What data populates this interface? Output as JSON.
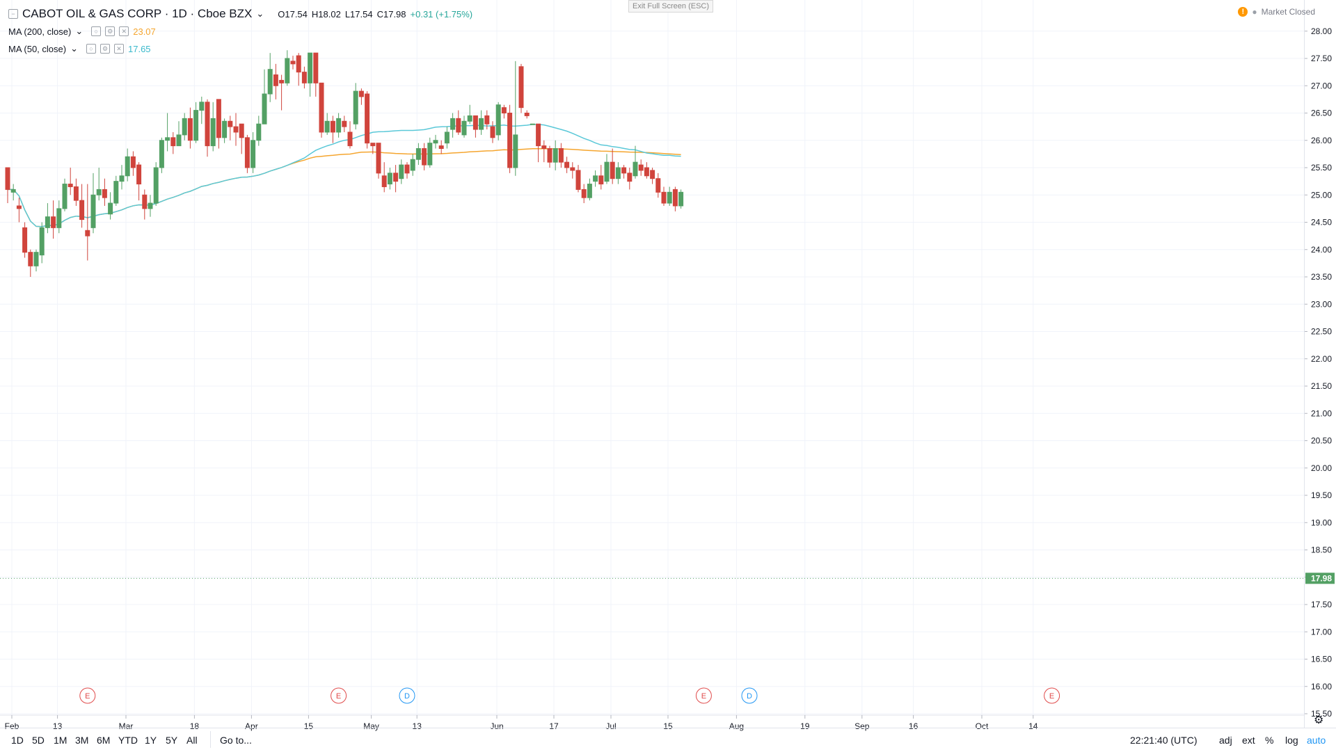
{
  "legend": {
    "collapse_icon": "minus-square-icon",
    "symbol": "CABOT OIL & GAS CORP · 1D · Cboe BZX",
    "open": "O17.54",
    "high": "H18.02",
    "low": "L17.54",
    "close": "C17.98",
    "change": "+0.31 (+1.75%)",
    "ma200_label": "MA (200, close)",
    "ma200_value": "23.07",
    "ma50_label": "MA (50, close)",
    "ma50_value": "17.65"
  },
  "exit_fullscreen": "Exit Full Screen (ESC)",
  "market_status": "Market Closed",
  "time_buttons": [
    "1D",
    "5D",
    "1M",
    "3M",
    "6M",
    "YTD",
    "1Y",
    "5Y",
    "All"
  ],
  "goto_label": "Go to...",
  "clock": "22:21:40 (UTC)",
  "axis_options": [
    "adj",
    "ext",
    "%",
    "log",
    "auto"
  ],
  "colors": {
    "up": "#53a064",
    "down": "#d0443c",
    "ma50": "#5ac8d8",
    "ma200": "#f5a52e",
    "event_earnings": "#e04b4b",
    "event_dividend": "#2196f3",
    "last_price_bg": "#53a064"
  },
  "chart_data": {
    "type": "candlestick",
    "price_axis": {
      "range": [
        15.5,
        28.2
      ],
      "ticks": [
        "15.50",
        "16.00",
        "16.50",
        "17.00",
        "17.50",
        "18.00",
        "18.50",
        "19.00",
        "19.50",
        "20.00",
        "20.50",
        "21.00",
        "21.50",
        "22.00",
        "22.50",
        "23.00",
        "23.50",
        "24.00",
        "24.50",
        "25.00",
        "25.50",
        "26.00",
        "26.50",
        "27.00",
        "27.50",
        "28.00"
      ],
      "last_price": "17.98"
    },
    "time_axis_labels": [
      {
        "label": "Feb",
        "day": 0
      },
      {
        "label": "13",
        "day": 8
      },
      {
        "label": "Mar",
        "day": 20
      },
      {
        "label": "18",
        "day": 32
      },
      {
        "label": "Apr",
        "day": 42
      },
      {
        "label": "15",
        "day": 52
      },
      {
        "label": "May",
        "day": 63
      },
      {
        "label": "13",
        "day": 71
      },
      {
        "label": "Jun",
        "day": 85
      },
      {
        "label": "17",
        "day": 95
      },
      {
        "label": "Jul",
        "day": 105
      },
      {
        "label": "15",
        "day": 115
      },
      {
        "label": "Aug",
        "day": 127
      },
      {
        "label": "19",
        "day": 139
      },
      {
        "label": "Sep",
        "day": 149
      },
      {
        "label": "16",
        "day": 158
      },
      {
        "label": "Oct",
        "day": 170
      },
      {
        "label": "14",
        "day": 179
      }
    ],
    "candles": [
      [
        25.5,
        25.1,
        25.5,
        24.85
      ],
      [
        25.05,
        25.1,
        25.2,
        24.9
      ],
      [
        24.8,
        24.75,
        24.95,
        24.5
      ],
      [
        24.4,
        23.95,
        24.5,
        23.85
      ],
      [
        23.95,
        23.7,
        24.0,
        23.5
      ],
      [
        23.7,
        23.95,
        24.0,
        23.6
      ],
      [
        23.9,
        24.4,
        24.5,
        23.75
      ],
      [
        24.4,
        24.6,
        24.85,
        24.3
      ],
      [
        24.6,
        24.4,
        24.9,
        24.2
      ],
      [
        24.4,
        24.75,
        24.9,
        24.3
      ],
      [
        24.75,
        25.2,
        25.3,
        24.7
      ],
      [
        25.2,
        25.15,
        25.5,
        25.0
      ],
      [
        25.15,
        24.9,
        25.3,
        24.8
      ],
      [
        24.9,
        24.55,
        25.2,
        24.4
      ],
      [
        24.35,
        24.25,
        25.2,
        23.8
      ],
      [
        24.4,
        25.0,
        25.4,
        24.3
      ],
      [
        25.0,
        25.1,
        25.5,
        24.9
      ],
      [
        25.1,
        24.95,
        25.3,
        24.8
      ],
      [
        24.65,
        24.85,
        25.05,
        24.55
      ],
      [
        24.85,
        25.25,
        25.35,
        24.8
      ],
      [
        25.25,
        25.35,
        25.55,
        25.1
      ],
      [
        25.35,
        25.7,
        25.85,
        25.25
      ],
      [
        25.7,
        25.5,
        25.8,
        25.35
      ],
      [
        25.55,
        25.2,
        25.6,
        24.9
      ],
      [
        25.0,
        24.75,
        25.1,
        24.55
      ],
      [
        24.75,
        24.85,
        25.0,
        24.6
      ],
      [
        24.85,
        25.5,
        25.6,
        24.8
      ],
      [
        25.5,
        26.0,
        26.05,
        25.4
      ],
      [
        26.0,
        26.05,
        26.5,
        25.8
      ],
      [
        26.05,
        25.9,
        26.15,
        25.75
      ],
      [
        25.9,
        26.1,
        26.35,
        25.9
      ],
      [
        26.1,
        26.4,
        26.5,
        26.0
      ],
      [
        26.4,
        26.0,
        26.6,
        25.85
      ],
      [
        26.0,
        26.55,
        26.7,
        25.95
      ],
      [
        26.55,
        26.7,
        26.8,
        26.3
      ],
      [
        26.7,
        25.9,
        26.75,
        25.7
      ],
      [
        25.9,
        26.4,
        26.7,
        25.8
      ],
      [
        26.75,
        26.05,
        26.75,
        25.85
      ],
      [
        26.05,
        26.35,
        26.4,
        25.95
      ],
      [
        26.35,
        26.25,
        26.45,
        26.0
      ],
      [
        26.25,
        26.15,
        26.5,
        25.9
      ],
      [
        26.3,
        26.05,
        26.3,
        25.75
      ],
      [
        26.05,
        25.5,
        26.1,
        25.4
      ],
      [
        25.5,
        26.0,
        26.15,
        25.4
      ],
      [
        26.0,
        26.3,
        26.45,
        25.9
      ],
      [
        26.3,
        26.85,
        27.3,
        26.3
      ],
      [
        26.85,
        27.3,
        27.6,
        26.7
      ],
      [
        27.2,
        27.0,
        27.4,
        26.75
      ],
      [
        27.1,
        27.05,
        27.2,
        26.55
      ],
      [
        27.05,
        27.5,
        27.65,
        27.0
      ],
      [
        27.45,
        27.4,
        27.55,
        27.3
      ],
      [
        27.55,
        27.25,
        27.6,
        27.0
      ],
      [
        27.25,
        27.05,
        27.35,
        26.95
      ],
      [
        27.05,
        27.6,
        27.6,
        26.8
      ],
      [
        27.6,
        27.05,
        27.6,
        26.8
      ],
      [
        27.05,
        26.15,
        27.05,
        26.05
      ],
      [
        26.15,
        26.35,
        26.5,
        26.1
      ],
      [
        26.35,
        26.15,
        26.45,
        25.95
      ],
      [
        26.15,
        26.4,
        26.5,
        26.05
      ],
      [
        26.35,
        26.25,
        26.45,
        26.15
      ],
      [
        26.15,
        25.9,
        26.35,
        25.85
      ],
      [
        26.3,
        26.9,
        27.05,
        26.2
      ],
      [
        26.9,
        26.8,
        26.95,
        26.65
      ],
      [
        26.85,
        25.95,
        26.9,
        25.85
      ],
      [
        25.95,
        25.9,
        25.95,
        25.75
      ],
      [
        25.95,
        25.4,
        25.95,
        25.3
      ],
      [
        25.35,
        25.15,
        25.6,
        25.05
      ],
      [
        25.2,
        25.4,
        25.5,
        25.1
      ],
      [
        25.4,
        25.25,
        25.55,
        25.05
      ],
      [
        25.3,
        25.55,
        25.65,
        25.2
      ],
      [
        25.55,
        25.4,
        25.6,
        25.3
      ],
      [
        25.45,
        25.65,
        25.75,
        25.35
      ],
      [
        25.65,
        25.85,
        25.95,
        25.55
      ],
      [
        25.85,
        25.55,
        25.95,
        25.45
      ],
      [
        25.55,
        25.95,
        26.05,
        25.5
      ],
      [
        25.95,
        26.0,
        26.1,
        25.85
      ],
      [
        25.9,
        25.85,
        26.0,
        25.75
      ],
      [
        25.95,
        26.15,
        26.25,
        25.85
      ],
      [
        26.2,
        26.4,
        26.5,
        26.05
      ],
      [
        26.4,
        26.15,
        26.55,
        26.1
      ],
      [
        26.1,
        26.35,
        26.45,
        26.05
      ],
      [
        26.35,
        26.45,
        26.65,
        26.3
      ],
      [
        26.45,
        26.2,
        26.45,
        26.05
      ],
      [
        26.2,
        26.4,
        26.55,
        26.1
      ],
      [
        26.45,
        26.3,
        26.55,
        26.2
      ],
      [
        26.25,
        26.05,
        26.35,
        25.95
      ],
      [
        26.1,
        26.65,
        26.7,
        26.0
      ],
      [
        26.6,
        26.5,
        26.65,
        26.4
      ],
      [
        26.5,
        25.5,
        26.65,
        25.4
      ],
      [
        25.5,
        26.1,
        27.45,
        25.35
      ],
      [
        27.35,
        26.6,
        27.4,
        26.5
      ],
      [
        26.5,
        26.45,
        26.55,
        26.4
      ],
      [
        26.3,
        26.3,
        26.3,
        26.3
      ],
      [
        26.3,
        25.9,
        26.3,
        25.6
      ],
      [
        25.9,
        25.85,
        26.0,
        25.6
      ],
      [
        25.85,
        25.6,
        25.9,
        25.5
      ],
      [
        25.6,
        25.85,
        26.0,
        25.45
      ],
      [
        25.85,
        25.6,
        25.95,
        25.5
      ],
      [
        25.6,
        25.5,
        25.7,
        25.4
      ],
      [
        25.5,
        25.45,
        25.6,
        25.3
      ],
      [
        25.45,
        25.1,
        25.55,
        25.05
      ],
      [
        25.1,
        24.95,
        25.2,
        24.85
      ],
      [
        24.95,
        25.2,
        25.3,
        24.9
      ],
      [
        25.25,
        25.35,
        25.45,
        25.15
      ],
      [
        25.35,
        25.2,
        25.55,
        25.1
      ],
      [
        25.25,
        25.6,
        25.75,
        25.2
      ],
      [
        25.6,
        25.3,
        25.85,
        25.2
      ],
      [
        25.3,
        25.5,
        25.6,
        25.2
      ],
      [
        25.5,
        25.4,
        25.55,
        25.3
      ],
      [
        25.4,
        25.25,
        25.5,
        25.1
      ],
      [
        25.35,
        25.6,
        25.9,
        25.3
      ],
      [
        25.55,
        25.45,
        25.65,
        25.35
      ],
      [
        25.5,
        25.35,
        25.6,
        25.3
      ],
      [
        25.45,
        25.3,
        25.5,
        25.2
      ],
      [
        25.3,
        25.05,
        25.4,
        24.95
      ],
      [
        25.05,
        24.85,
        25.15,
        24.8
      ],
      [
        24.85,
        25.05,
        25.15,
        24.8
      ],
      [
        25.1,
        24.8,
        25.15,
        24.7
      ],
      [
        24.8,
        25.05,
        25.1,
        24.75
      ]
    ]
  }
}
